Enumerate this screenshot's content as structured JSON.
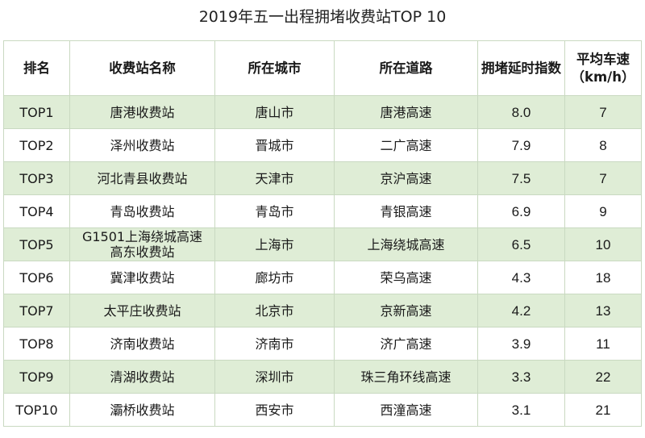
{
  "chart_data": {
    "type": "table",
    "title": "2019年五一出程拥堵收费站TOP 10",
    "columns": [
      "排名",
      "收费站名称",
      "所在城市",
      "所在道路",
      "拥堵延时指数",
      "平均车速（km/h）"
    ],
    "rows": [
      {
        "rank": "TOP1",
        "station": "唐港收费站",
        "city": "唐山市",
        "road": "唐港高速",
        "delay_index": "8.0",
        "speed": "7"
      },
      {
        "rank": "TOP2",
        "station": "泽州收费站",
        "city": "晋城市",
        "road": "二广高速",
        "delay_index": "7.9",
        "speed": "8"
      },
      {
        "rank": "TOP3",
        "station": "河北青县收费站",
        "city": "天津市",
        "road": "京沪高速",
        "delay_index": "7.5",
        "speed": "7"
      },
      {
        "rank": "TOP4",
        "station": "青岛收费站",
        "city": "青岛市",
        "road": "青银高速",
        "delay_index": "6.9",
        "speed": "9"
      },
      {
        "rank": "TOP5",
        "station": "G1501上海绕城高速高东收费站",
        "city": "上海市",
        "road": "上海绕城高速",
        "delay_index": "6.5",
        "speed": "10"
      },
      {
        "rank": "TOP6",
        "station": "冀津收费站",
        "city": "廊坊市",
        "road": "荣乌高速",
        "delay_index": "4.3",
        "speed": "18"
      },
      {
        "rank": "TOP7",
        "station": "太平庄收费站",
        "city": "北京市",
        "road": "京新高速",
        "delay_index": "4.2",
        "speed": "13"
      },
      {
        "rank": "TOP8",
        "station": "济南收费站",
        "city": "济南市",
        "road": "济广高速",
        "delay_index": "3.9",
        "speed": "11"
      },
      {
        "rank": "TOP9",
        "station": "清湖收费站",
        "city": "深圳市",
        "road": "珠三角环线高速",
        "delay_index": "3.3",
        "speed": "22"
      },
      {
        "rank": "TOP10",
        "station": "灞桥收费站",
        "city": "西安市",
        "road": "西潼高速",
        "delay_index": "3.1",
        "speed": "21"
      }
    ],
    "colors": {
      "stripe": "#dfedd6",
      "border": "#c9d9c1"
    }
  }
}
